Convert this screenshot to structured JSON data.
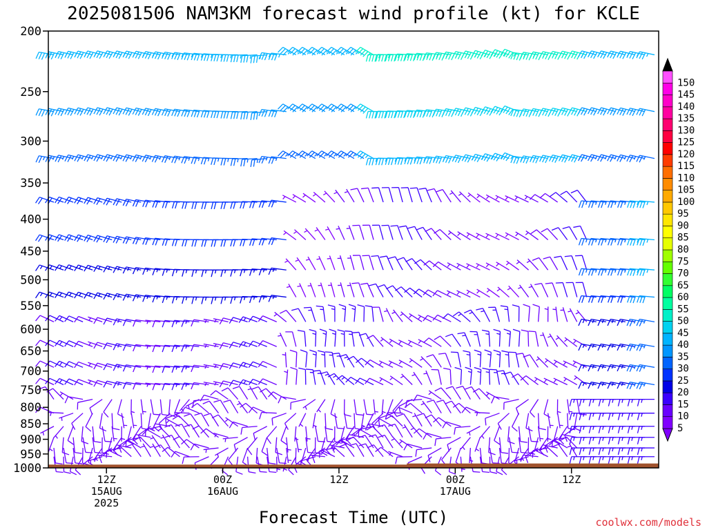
{
  "chart_data": {
    "type": "wind-barb-profile",
    "title": "2025081506 NAM3KM forecast wind profile (kt) for KCLE",
    "xlabel": "Forecast Time (UTC)",
    "units": "kt",
    "y_axis": {
      "label": "",
      "scale": "log-pressure",
      "range": [
        1000,
        200
      ],
      "ticks": [
        200,
        250,
        300,
        350,
        400,
        450,
        500,
        550,
        600,
        650,
        700,
        750,
        800,
        850,
        900,
        950,
        1000
      ]
    },
    "x_axis": {
      "range": [
        "2025-08-15T06Z",
        "2025-08-17T21Z"
      ],
      "ticks": [
        {
          "line1": "12Z",
          "line2": "15AUG",
          "line3": "2025"
        },
        {
          "line1": "00Z",
          "line2": "16AUG",
          "line3": ""
        },
        {
          "line1": "12Z",
          "line2": "",
          "line3": ""
        },
        {
          "line1": "00Z",
          "line2": "17AUG",
          "line3": ""
        },
        {
          "line1": "12Z",
          "line2": "",
          "line3": ""
        }
      ]
    },
    "colorbar": {
      "levels": [
        5,
        10,
        15,
        20,
        25,
        30,
        35,
        40,
        45,
        50,
        55,
        60,
        65,
        70,
        75,
        80,
        85,
        90,
        95,
        100,
        105,
        110,
        115,
        120,
        125,
        130,
        135,
        140,
        145,
        150
      ],
      "colors": [
        "#8000ff",
        "#6a00ff",
        "#3a00ff",
        "#0000e6",
        "#0032ff",
        "#0064ff",
        "#0096ff",
        "#00b4ff",
        "#00d2f0",
        "#00f0c8",
        "#00ffa0",
        "#00ff64",
        "#32ff32",
        "#64ff00",
        "#a0ff00",
        "#e6ff00",
        "#ffff00",
        "#ffe600",
        "#ffc800",
        "#ffaa00",
        "#ff8c00",
        "#ff6e00",
        "#ff3c00",
        "#ff0000",
        "#ff0040",
        "#ff0070",
        "#ff00a0",
        "#ff00c8",
        "#ff00e6",
        "#ff50ff"
      ]
    },
    "terrain_color": "#a0522d",
    "time_steps": [
      "06Z",
      "07Z",
      "08Z",
      "09Z",
      "10Z",
      "11Z",
      "12Z",
      "13Z",
      "14Z",
      "15Z",
      "16Z",
      "17Z",
      "18Z",
      "19Z",
      "20Z",
      "21Z",
      "22Z",
      "23Z",
      "00Z",
      "01Z",
      "02Z",
      "03Z",
      "04Z",
      "05Z",
      "06Z",
      "07Z",
      "08Z",
      "09Z",
      "10Z",
      "11Z",
      "12Z",
      "13Z",
      "14Z",
      "15Z",
      "16Z",
      "17Z",
      "18Z",
      "19Z",
      "20Z",
      "21Z",
      "22Z",
      "23Z",
      "00Z",
      "01Z",
      "02Z",
      "03Z",
      "04Z",
      "05Z",
      "06Z",
      "07Z",
      "08Z",
      "09Z",
      "10Z",
      "11Z",
      "12Z",
      "13Z",
      "14Z",
      "15Z",
      "16Z",
      "17Z",
      "18Z",
      "19Z",
      "20Z",
      "21Z",
      "22Z",
      "23Z",
      "00Z",
      "01Z",
      "02Z",
      "03Z",
      "04Z",
      "05Z",
      "06Z",
      "07Z",
      "08Z",
      "09Z",
      "10Z",
      "11Z",
      "12Z",
      "13Z",
      "14Z",
      "15Z",
      "16Z",
      "17Z",
      "18Z",
      "19Z",
      "20Z",
      "21Z"
    ],
    "levels_hpa": [
      215,
      265,
      315,
      370,
      425,
      475,
      525,
      575,
      630,
      680,
      725,
      765,
      805,
      845,
      880,
      915,
      945
    ],
    "note_keys": [
      "dir_deg",
      "speed_kt"
    ]
  },
  "credit": "coolwx.com/models"
}
